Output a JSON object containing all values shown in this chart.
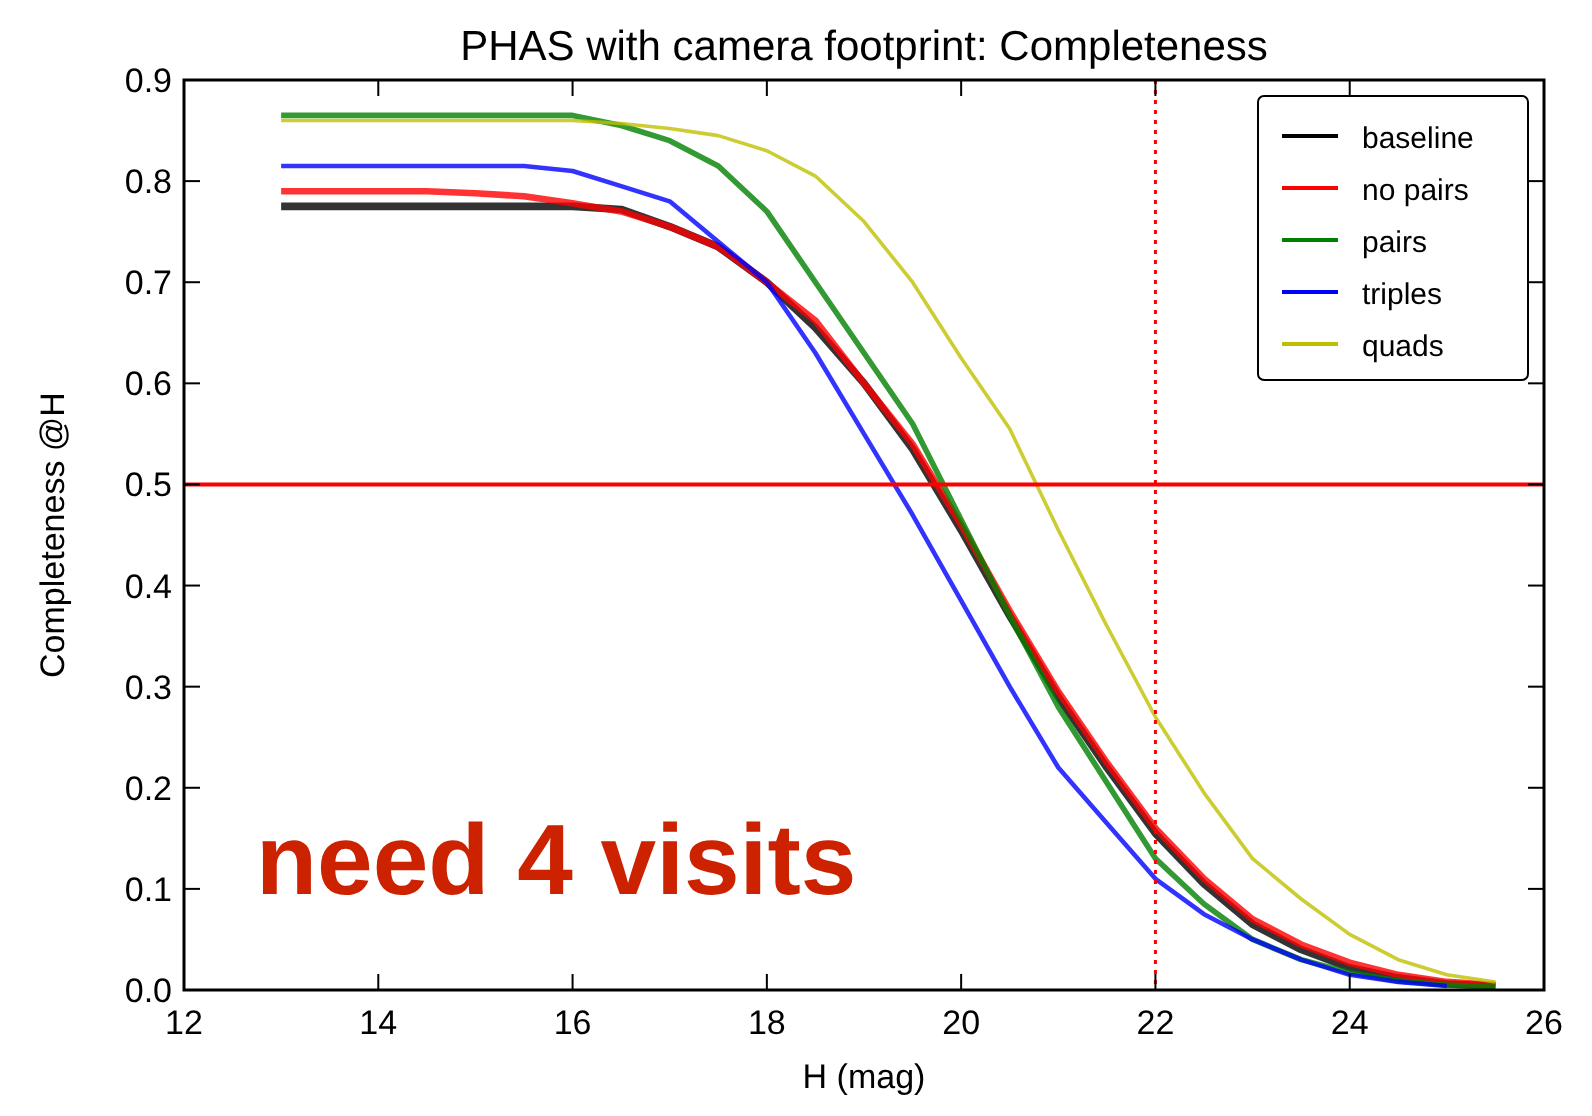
{
  "chart_data": {
    "type": "line",
    "title": "PHAS with camera footprint: Completeness",
    "xlabel": "H (mag)",
    "ylabel": "Completeness @H",
    "x": [
      13,
      13.5,
      14,
      14.5,
      15,
      15.5,
      16,
      16.5,
      17,
      17.5,
      18,
      18.5,
      19,
      19.5,
      20,
      20.5,
      21,
      21.5,
      22,
      22.5,
      23,
      23.5,
      24,
      24.5,
      25,
      25.5
    ],
    "series": [
      {
        "name": "baseline",
        "color": "#000000",
        "values": [
          0.775,
          0.775,
          0.775,
          0.775,
          0.775,
          0.775,
          0.775,
          0.772,
          0.755,
          0.735,
          0.7,
          0.655,
          0.6,
          0.535,
          0.455,
          0.37,
          0.29,
          0.22,
          0.155,
          0.105,
          0.065,
          0.04,
          0.022,
          0.012,
          0.006,
          0.004
        ]
      },
      {
        "name": "no pairs",
        "color": "#ff0000",
        "values": [
          0.79,
          0.79,
          0.79,
          0.79,
          0.788,
          0.785,
          0.778,
          0.77,
          0.755,
          0.735,
          0.7,
          0.662,
          0.6,
          0.54,
          0.46,
          0.375,
          0.295,
          0.225,
          0.16,
          0.11,
          0.07,
          0.045,
          0.027,
          0.015,
          0.008,
          0.005
        ]
      },
      {
        "name": "pairs",
        "color": "#008000",
        "values": [
          0.865,
          0.865,
          0.865,
          0.865,
          0.865,
          0.865,
          0.865,
          0.855,
          0.84,
          0.815,
          0.77,
          0.7,
          0.63,
          0.56,
          0.465,
          0.37,
          0.28,
          0.205,
          0.13,
          0.085,
          0.05,
          0.03,
          0.017,
          0.009,
          0.005,
          0.003
        ]
      },
      {
        "name": "triples",
        "color": "#0000ff",
        "values": [
          0.815,
          0.815,
          0.815,
          0.815,
          0.815,
          0.815,
          0.81,
          0.795,
          0.78,
          0.74,
          0.7,
          0.63,
          0.55,
          0.47,
          0.385,
          0.3,
          0.22,
          0.165,
          0.11,
          0.075,
          0.05,
          0.03,
          0.015,
          0.008,
          0.004,
          null
        ]
      },
      {
        "name": "quads",
        "color": "#bfbf00",
        "values": [
          0.86,
          0.86,
          0.86,
          0.86,
          0.86,
          0.86,
          0.86,
          0.857,
          0.852,
          0.845,
          0.83,
          0.805,
          0.76,
          0.7,
          0.625,
          0.555,
          0.455,
          0.36,
          0.27,
          0.195,
          0.13,
          0.09,
          0.055,
          0.03,
          0.015,
          0.008
        ]
      }
    ],
    "xlim": [
      12,
      26
    ],
    "xticks": [
      12,
      14,
      16,
      18,
      20,
      22,
      24,
      26
    ],
    "ylim": [
      0,
      0.9
    ],
    "yticks": [
      {
        "value": 0,
        "label": "0.0"
      },
      0.1,
      0.2,
      0.3,
      0.4,
      0.5,
      0.6,
      0.7,
      0.8,
      0.9
    ],
    "ref_lines": [
      {
        "axis": "y",
        "value": 0.5,
        "color": "#ff0000",
        "line_style": "solid"
      },
      {
        "axis": "x",
        "value": 22,
        "color": "#ff0000",
        "line_style": "dotted"
      }
    ],
    "annotations": [
      "need 4 visits"
    ],
    "legend": "top right",
    "grid": false,
    "line_style": "solid"
  }
}
